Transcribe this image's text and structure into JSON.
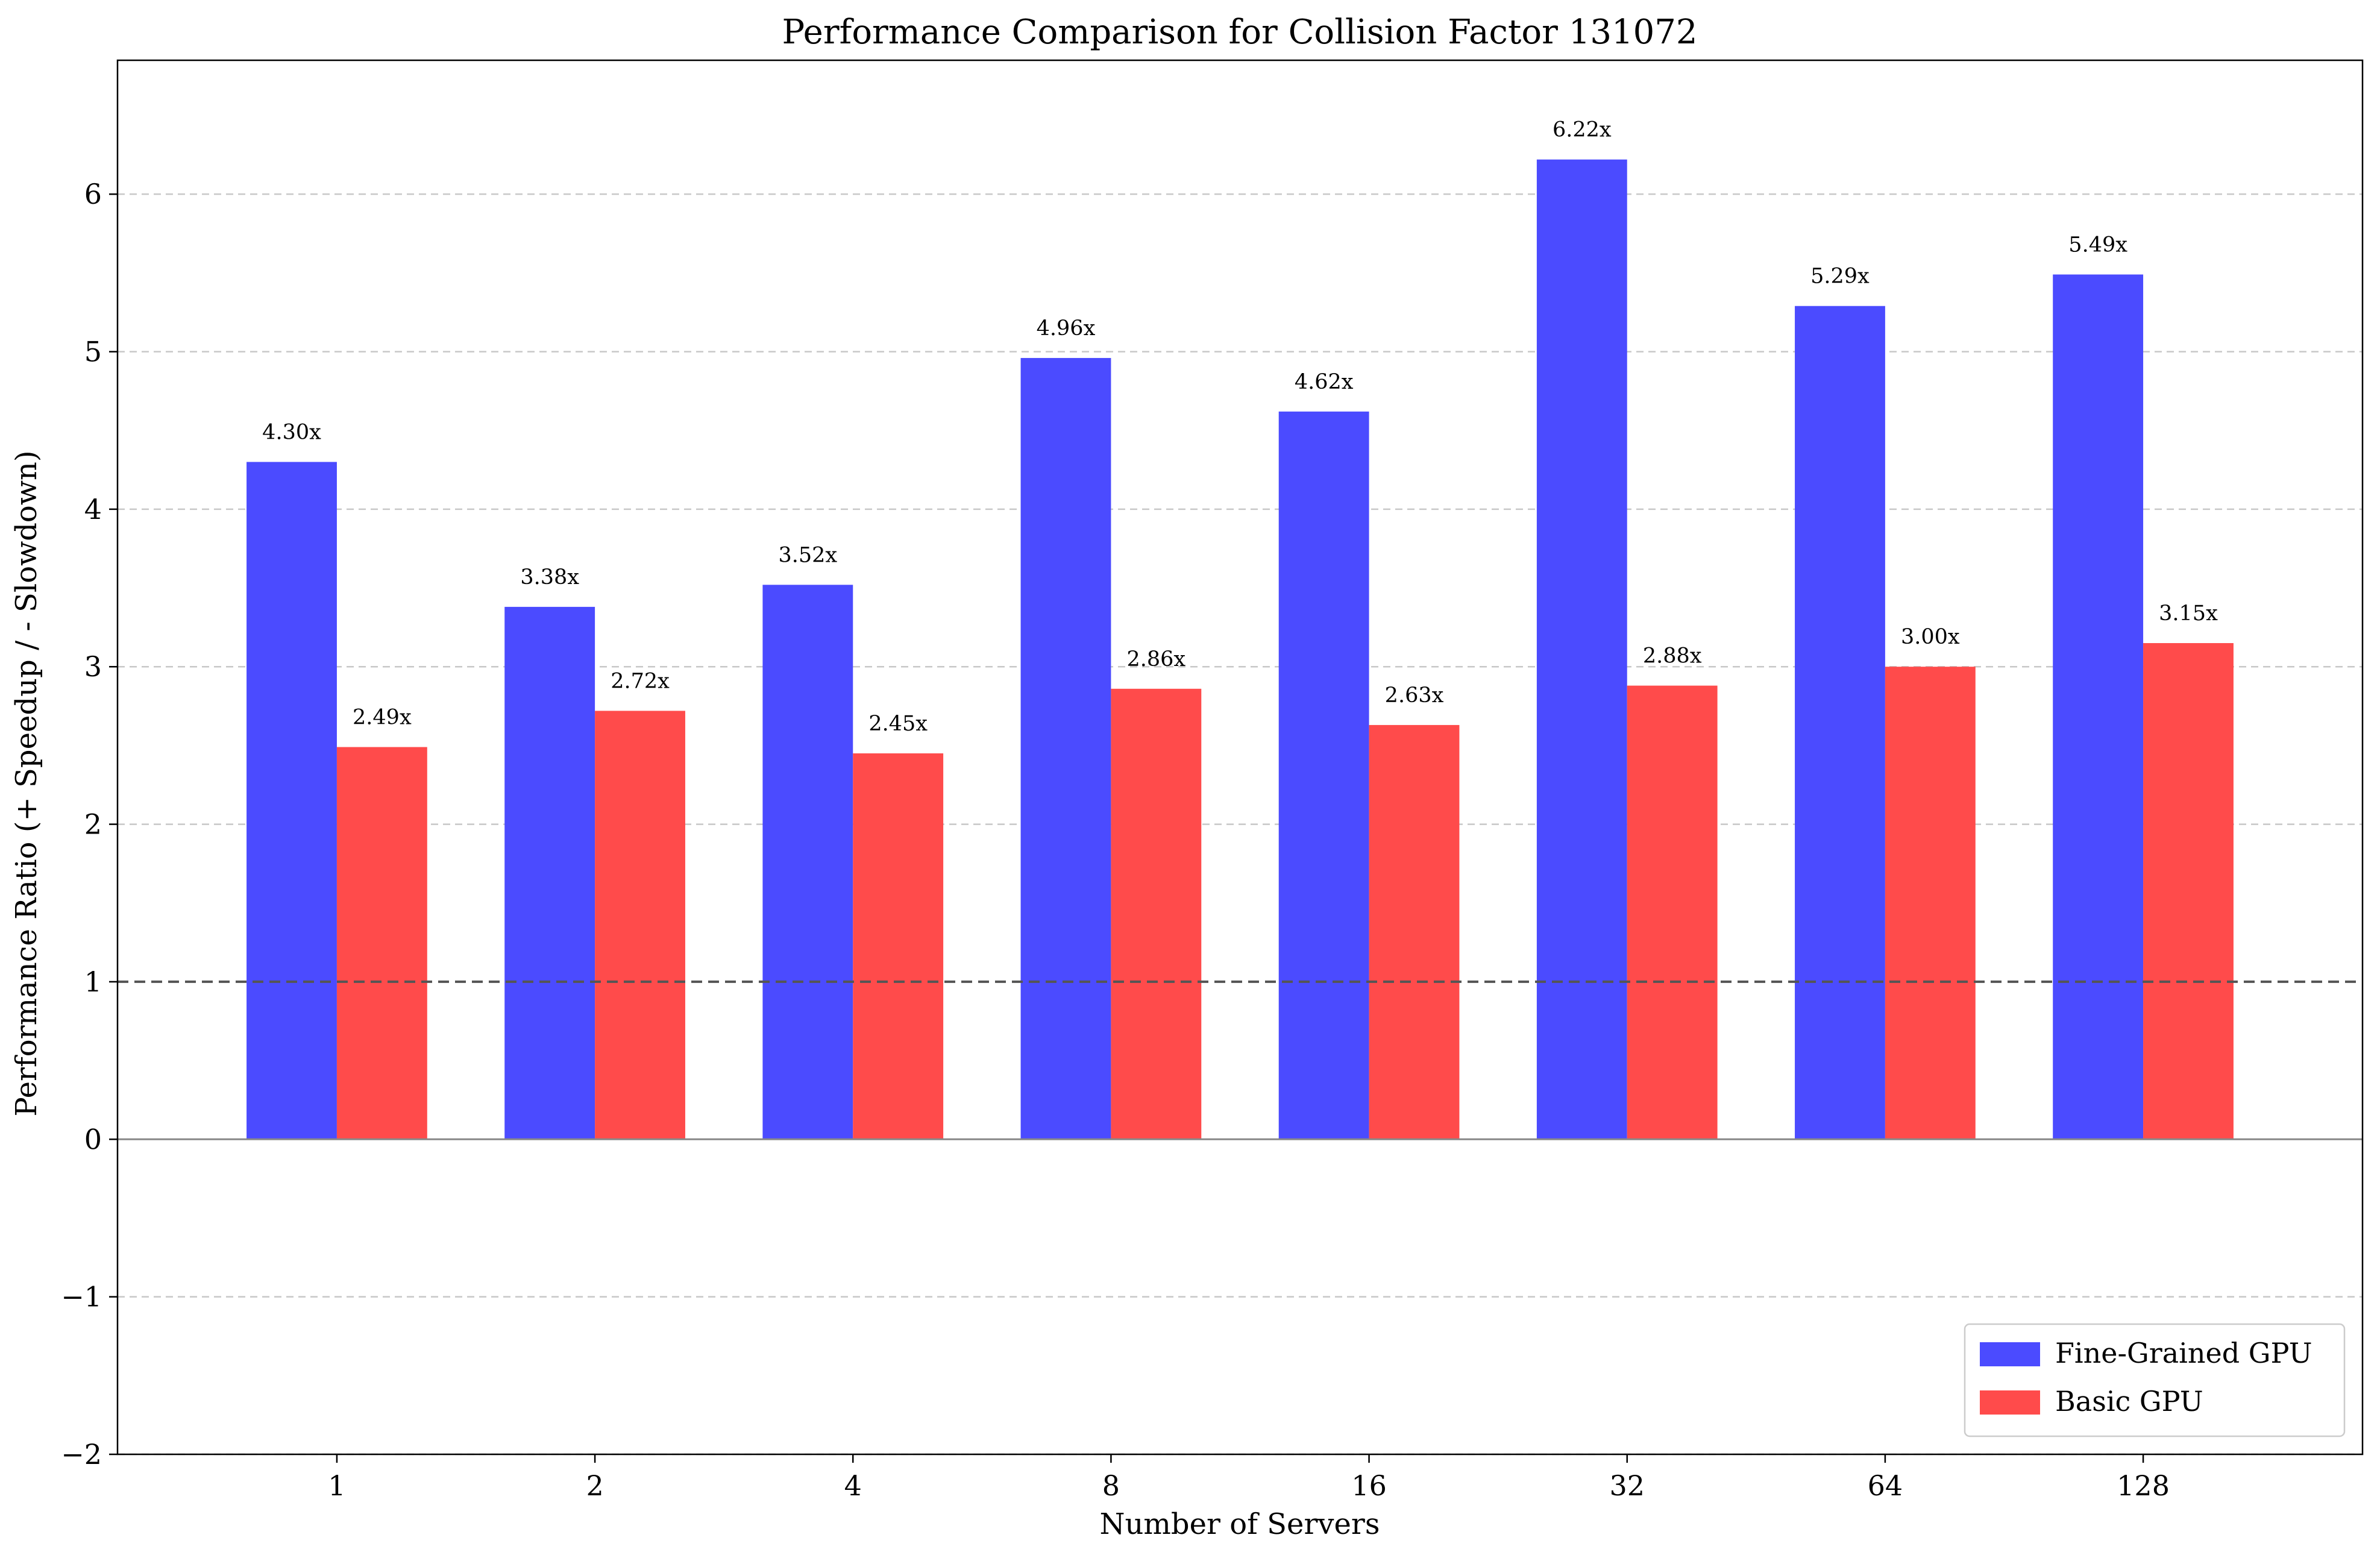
{
  "chart_data": {
    "type": "bar",
    "title": "Performance Comparison for Collision Factor 131072",
    "xlabel": "Number of Servers",
    "ylabel": "Performance Ratio (+ Speedup / - Slowdown)",
    "categories": [
      "1",
      "2",
      "4",
      "8",
      "16",
      "32",
      "64",
      "128"
    ],
    "series": [
      {
        "name": "Fine-Grained GPU",
        "color": "#4b4bff",
        "values": [
          4.3,
          3.38,
          3.52,
          4.96,
          4.62,
          6.22,
          5.29,
          5.49
        ],
        "labels": [
          "4.30x",
          "3.38x",
          "3.52x",
          "4.96x",
          "4.62x",
          "6.22x",
          "5.29x",
          "5.49x"
        ]
      },
      {
        "name": "Basic GPU",
        "color": "#ff4b4b",
        "values": [
          2.49,
          2.72,
          2.45,
          2.86,
          2.63,
          2.88,
          3.0,
          3.15
        ],
        "labels": [
          "2.49x",
          "2.72x",
          "2.45x",
          "2.86x",
          "2.63x",
          "2.88x",
          "3.00x",
          "3.15x"
        ]
      }
    ],
    "ylim": [
      -2,
      6.85
    ],
    "yticks": [
      -2,
      -1,
      0,
      1,
      2,
      3,
      4,
      5,
      6
    ],
    "ytick_labels": [
      "−2",
      "−1",
      "0",
      "1",
      "2",
      "3",
      "4",
      "5",
      "6"
    ],
    "reference_lines": [
      {
        "y": 1,
        "style": "dashed",
        "color": "#555555"
      },
      {
        "y": 0,
        "style": "solid",
        "color": "#888888"
      }
    ],
    "grid": "y-dashed",
    "legend_position": "bottom-right"
  }
}
